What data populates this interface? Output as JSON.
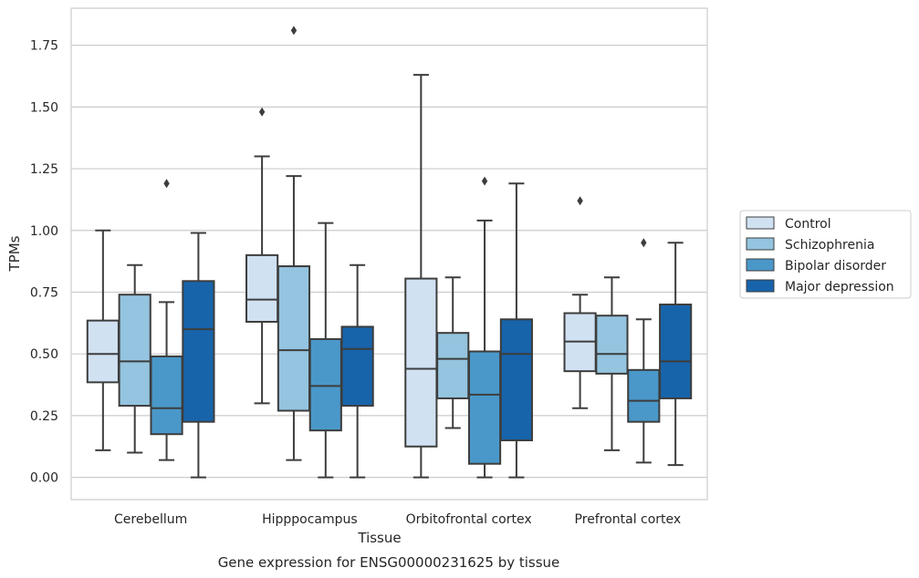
{
  "chart_data": {
    "type": "box",
    "title": "Gene expression for ENSG00000231625 by tissue",
    "xlabel": "Tissue",
    "ylabel": "TPMs",
    "ylim": [
      -0.09,
      1.9
    ],
    "yticks": [
      "0.00",
      "0.25",
      "0.50",
      "0.75",
      "1.00",
      "1.25",
      "1.50",
      "1.75"
    ],
    "grid": "horizontal",
    "legend": "right",
    "categories": [
      "Cerebellum",
      "Hipppocampus",
      "Orbitofrontal cortex",
      "Prefrontal cortex"
    ],
    "series": [
      {
        "name": "Control",
        "color": "#d0e1f2",
        "boxes": [
          {
            "whisker_low": 0.11,
            "q1": 0.385,
            "median": 0.5,
            "q3": 0.635,
            "whisker_high": 1.0,
            "outliers": []
          },
          {
            "whisker_low": 0.3,
            "q1": 0.63,
            "median": 0.72,
            "q3": 0.9,
            "whisker_high": 1.3,
            "outliers": [
              1.48
            ]
          },
          {
            "whisker_low": 0.0,
            "q1": 0.125,
            "median": 0.44,
            "q3": 0.805,
            "whisker_high": 1.63,
            "outliers": []
          },
          {
            "whisker_low": 0.28,
            "q1": 0.43,
            "median": 0.55,
            "q3": 0.665,
            "whisker_high": 0.74,
            "outliers": [
              1.12
            ]
          }
        ]
      },
      {
        "name": "Schizophrenia",
        "color": "#94c4df",
        "boxes": [
          {
            "whisker_low": 0.1,
            "q1": 0.29,
            "median": 0.47,
            "q3": 0.74,
            "whisker_high": 0.86,
            "outliers": []
          },
          {
            "whisker_low": 0.07,
            "q1": 0.27,
            "median": 0.515,
            "q3": 0.855,
            "whisker_high": 1.22,
            "outliers": [
              1.81
            ]
          },
          {
            "whisker_low": 0.2,
            "q1": 0.32,
            "median": 0.48,
            "q3": 0.585,
            "whisker_high": 0.81,
            "outliers": []
          },
          {
            "whisker_low": 0.11,
            "q1": 0.42,
            "median": 0.5,
            "q3": 0.655,
            "whisker_high": 0.81,
            "outliers": []
          }
        ]
      },
      {
        "name": "Bipolar disorder",
        "color": "#4a98c9",
        "boxes": [
          {
            "whisker_low": 0.07,
            "q1": 0.175,
            "median": 0.28,
            "q3": 0.49,
            "whisker_high": 0.71,
            "outliers": [
              1.19
            ]
          },
          {
            "whisker_low": 0.0,
            "q1": 0.19,
            "median": 0.37,
            "q3": 0.56,
            "whisker_high": 1.03,
            "outliers": []
          },
          {
            "whisker_low": 0.0,
            "q1": 0.055,
            "median": 0.335,
            "q3": 0.51,
            "whisker_high": 1.04,
            "outliers": [
              1.2
            ]
          },
          {
            "whisker_low": 0.06,
            "q1": 0.225,
            "median": 0.31,
            "q3": 0.435,
            "whisker_high": 0.64,
            "outliers": [
              0.95
            ]
          }
        ]
      },
      {
        "name": "Major depression",
        "color": "#1764ab",
        "boxes": [
          {
            "whisker_low": 0.0,
            "q1": 0.225,
            "median": 0.6,
            "q3": 0.795,
            "whisker_high": 0.99,
            "outliers": []
          },
          {
            "whisker_low": 0.0,
            "q1": 0.29,
            "median": 0.52,
            "q3": 0.61,
            "whisker_high": 0.86,
            "outliers": []
          },
          {
            "whisker_low": 0.0,
            "q1": 0.15,
            "median": 0.5,
            "q3": 0.64,
            "whisker_high": 1.19,
            "outliers": []
          },
          {
            "whisker_low": 0.05,
            "q1": 0.32,
            "median": 0.47,
            "q3": 0.7,
            "whisker_high": 0.95,
            "outliers": []
          }
        ]
      }
    ]
  }
}
